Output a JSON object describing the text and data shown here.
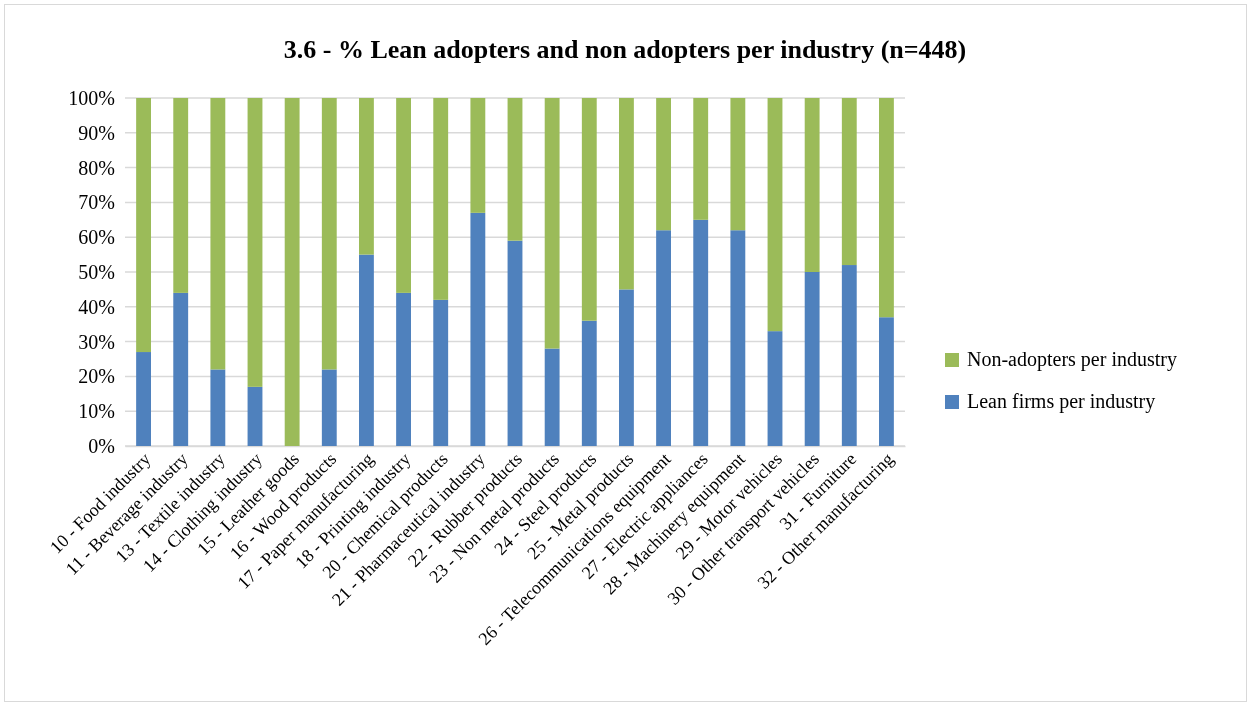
{
  "chart_data": {
    "type": "bar",
    "title": "3.6 - % Lean adopters and non adopters per industry (n=448)",
    "stacked": true,
    "categories": [
      "10 - Food industry",
      "11 - Beverage industry",
      "13 - Textile industry",
      "14 - Clothing industry",
      "15 - Leather goods",
      "16 - Wood products",
      "17 - Paper manufacturing",
      "18 - Printing industry",
      "20 - Chemical products",
      "21 - Pharmaceutical industry",
      "22 - Rubber products",
      "23 - Non metal products",
      "24 - Steel products",
      "25 - Metal products",
      "26 - Telecommunications equipment",
      "27 - Electric appliances",
      "28 - Machinery equipment",
      "29 - Motor vehicles",
      "30 - Other transport vehicles",
      "31 - Furniture",
      "32 - Other manufacturing"
    ],
    "series": [
      {
        "name": "Lean firms per industry",
        "color": "#4f81bd",
        "values": [
          27,
          44,
          22,
          17,
          0,
          22,
          55,
          44,
          42,
          67,
          59,
          28,
          36,
          45,
          62,
          65,
          62,
          33,
          50,
          52,
          37
        ]
      },
      {
        "name": "Non-adopters per industry",
        "color": "#9bbb59",
        "values": [
          73,
          56,
          78,
          83,
          100,
          78,
          45,
          56,
          58,
          33,
          41,
          72,
          64,
          55,
          38,
          35,
          38,
          67,
          50,
          48,
          63
        ]
      }
    ],
    "ylim": [
      0,
      100
    ],
    "yticks": [
      {
        "value": 0,
        "label": "0%"
      },
      {
        "value": 10,
        "label": "10%"
      },
      {
        "value": 20,
        "label": "20%"
      },
      {
        "value": 30,
        "label": "30%"
      },
      {
        "value": 40,
        "label": "40%"
      },
      {
        "value": 50,
        "label": "50%"
      },
      {
        "value": 60,
        "label": "60%"
      },
      {
        "value": 70,
        "label": "70%"
      },
      {
        "value": 80,
        "label": "80%"
      },
      {
        "value": 90,
        "label": "90%"
      },
      {
        "value": 100,
        "label": "100%"
      }
    ],
    "grid": "y",
    "legend": "right"
  }
}
